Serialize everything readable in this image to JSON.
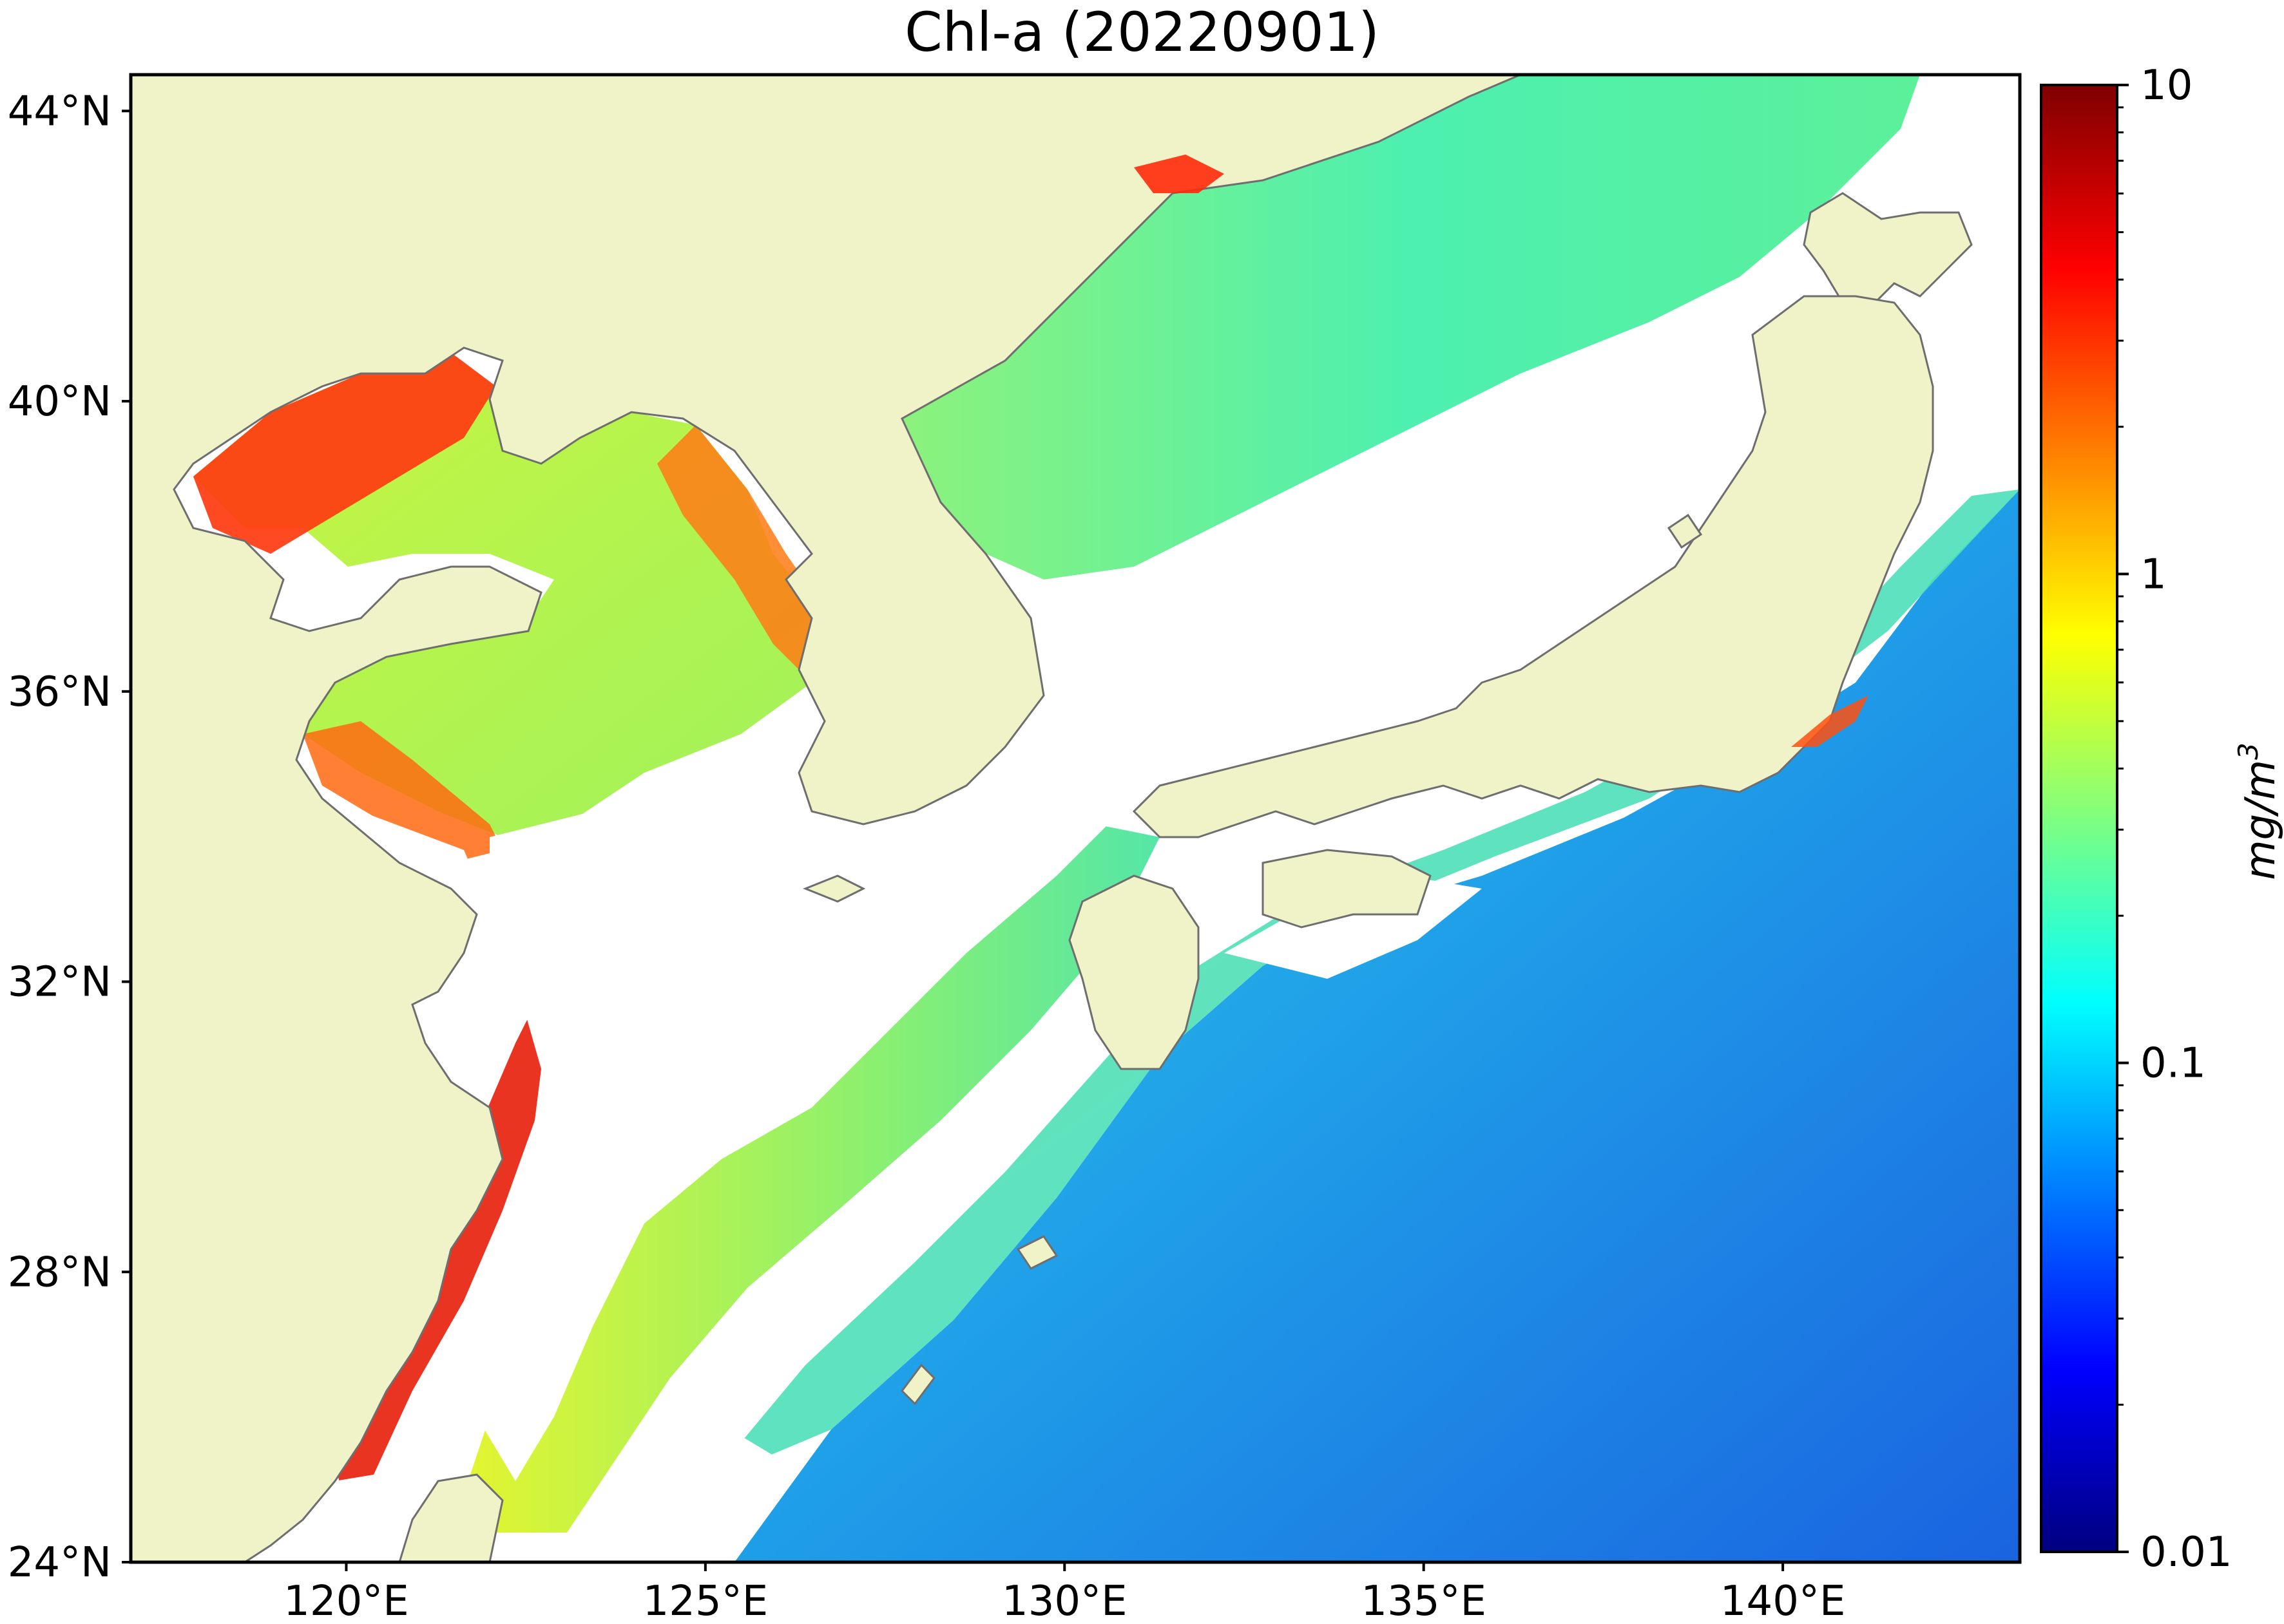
{
  "title": "Chl-a (20220901)",
  "map": {
    "lon_range": [
      117,
      143.3
    ],
    "lat_range": [
      24,
      44.5
    ],
    "lon_ticks": [
      {
        "value": 120,
        "label": "120°E"
      },
      {
        "value": 125,
        "label": "125°E"
      },
      {
        "value": 130,
        "label": "130°E"
      },
      {
        "value": 135,
        "label": "135°E"
      },
      {
        "value": 140,
        "label": "140°E"
      }
    ],
    "lat_ticks": [
      {
        "value": 24,
        "label": "24°N"
      },
      {
        "value": 28,
        "label": "28°N"
      },
      {
        "value": 32,
        "label": "32°N"
      },
      {
        "value": 36,
        "label": "36°N"
      },
      {
        "value": 40,
        "label": "40°N"
      },
      {
        "value": 44,
        "label": "44°N"
      }
    ],
    "colors": {
      "land": "#f0f2c8",
      "coastline": "#6e6e6e",
      "no_data": "#ffffff"
    }
  },
  "colorbar": {
    "scale": "log",
    "min": 0.01,
    "max": 10,
    "ticks": [
      {
        "value": 10,
        "label": "10"
      },
      {
        "value": 1,
        "label": "1"
      },
      {
        "value": 0.1,
        "label": "0.1"
      },
      {
        "value": 0.01,
        "label": "0.01"
      }
    ],
    "unit": "mg/m",
    "unit_exponent": "3",
    "colormap": "jet",
    "stops": [
      "#00007f",
      "#0000ff",
      "#007fff",
      "#00ffff",
      "#7fff7f",
      "#ffff00",
      "#ff7f00",
      "#ff0000",
      "#7f0000"
    ]
  }
}
